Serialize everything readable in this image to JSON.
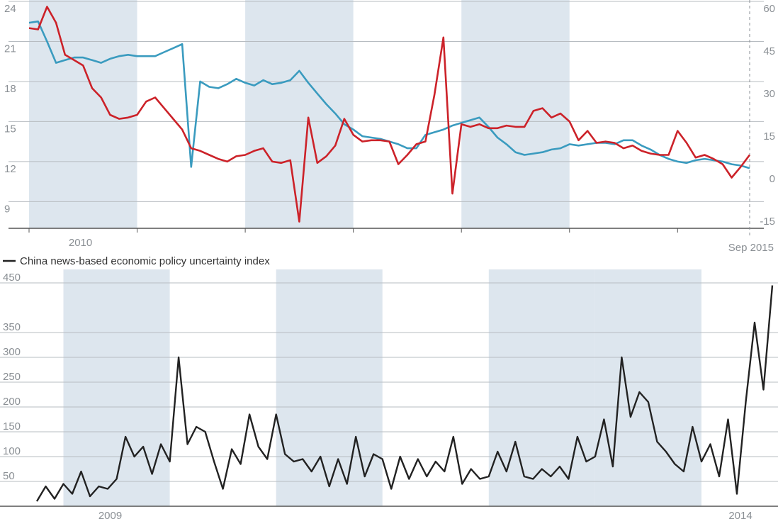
{
  "chart_data": [
    {
      "type": "line",
      "title": "",
      "x_range": [
        "2009-01",
        "2015-09"
      ],
      "x_tick_labels": [
        "2010",
        "Sep 2015"
      ],
      "y_left": {
        "ylim": [
          7,
          24
        ],
        "ticks": [
          9,
          12,
          15,
          18,
          21,
          24
        ]
      },
      "y_right": {
        "ylim": [
          -20,
          60
        ],
        "ticks": [
          -15,
          0,
          15,
          30,
          45,
          60
        ]
      },
      "grid": true,
      "shading_bands": [
        [
          "2009-01",
          "2010-01"
        ],
        [
          "2011-01",
          "2012-01"
        ],
        [
          "2013-01",
          "2014-01"
        ]
      ],
      "series": [
        {
          "axis": "left",
          "color": "#3a9bbf",
          "values": [
            [
              "2009-01",
              22.4
            ],
            [
              "2009-02",
              22.5
            ],
            [
              "2009-03",
              21.0
            ],
            [
              "2009-04",
              19.4
            ],
            [
              "2009-05",
              19.6
            ],
            [
              "2009-06",
              19.8
            ],
            [
              "2009-07",
              19.8
            ],
            [
              "2009-08",
              19.6
            ],
            [
              "2009-09",
              19.4
            ],
            [
              "2009-10",
              19.7
            ],
            [
              "2009-11",
              19.9
            ],
            [
              "2009-12",
              20.0
            ],
            [
              "2010-01",
              19.9
            ],
            [
              "2010-02",
              19.9
            ],
            [
              "2010-03",
              19.9
            ],
            [
              "2010-04",
              20.2
            ],
            [
              "2010-05",
              20.5
            ],
            [
              "2010-06",
              20.8
            ],
            [
              "2010-07",
              11.6
            ],
            [
              "2010-08",
              18.0
            ],
            [
              "2010-09",
              17.6
            ],
            [
              "2010-10",
              17.5
            ],
            [
              "2010-11",
              17.8
            ],
            [
              "2010-12",
              18.2
            ],
            [
              "2011-01",
              17.9
            ],
            [
              "2011-02",
              17.7
            ],
            [
              "2011-03",
              18.1
            ],
            [
              "2011-04",
              17.8
            ],
            [
              "2011-05",
              17.9
            ],
            [
              "2011-06",
              18.1
            ],
            [
              "2011-07",
              18.8
            ],
            [
              "2011-08",
              17.9
            ],
            [
              "2011-09",
              17.1
            ],
            [
              "2011-10",
              16.3
            ],
            [
              "2011-11",
              15.6
            ],
            [
              "2011-12",
              14.8
            ],
            [
              "2012-01",
              14.4
            ],
            [
              "2012-02",
              13.9
            ],
            [
              "2012-03",
              13.8
            ],
            [
              "2012-04",
              13.7
            ],
            [
              "2012-05",
              13.5
            ],
            [
              "2012-06",
              13.3
            ],
            [
              "2012-07",
              13.0
            ],
            [
              "2012-08",
              13.0
            ],
            [
              "2012-09",
              14.0
            ],
            [
              "2012-10",
              14.2
            ],
            [
              "2012-11",
              14.4
            ],
            [
              "2012-12",
              14.7
            ],
            [
              "2013-01",
              14.9
            ],
            [
              "2013-02",
              15.1
            ],
            [
              "2013-03",
              15.3
            ],
            [
              "2013-04",
              14.6
            ],
            [
              "2013-05",
              13.8
            ],
            [
              "2013-06",
              13.3
            ],
            [
              "2013-07",
              12.7
            ],
            [
              "2013-08",
              12.5
            ],
            [
              "2013-09",
              12.6
            ],
            [
              "2013-10",
              12.7
            ],
            [
              "2013-11",
              12.9
            ],
            [
              "2013-12",
              13.0
            ],
            [
              "2014-01",
              13.3
            ],
            [
              "2014-02",
              13.2
            ],
            [
              "2014-03",
              13.3
            ],
            [
              "2014-04",
              13.4
            ],
            [
              "2014-05",
              13.4
            ],
            [
              "2014-06",
              13.3
            ],
            [
              "2014-07",
              13.6
            ],
            [
              "2014-08",
              13.6
            ],
            [
              "2014-09",
              13.2
            ],
            [
              "2014-10",
              12.9
            ],
            [
              "2014-11",
              12.5
            ],
            [
              "2014-12",
              12.2
            ],
            [
              "2015-01",
              12.0
            ],
            [
              "2015-02",
              11.9
            ],
            [
              "2015-03",
              12.1
            ],
            [
              "2015-04",
              12.2
            ],
            [
              "2015-05",
              12.1
            ],
            [
              "2015-06",
              12.0
            ],
            [
              "2015-07",
              11.8
            ],
            [
              "2015-08",
              11.7
            ],
            [
              "2015-09",
              11.5
            ]
          ]
        },
        {
          "axis": "left",
          "color": "#cc2229",
          "values": [
            [
              "2009-01",
              22.0
            ],
            [
              "2009-02",
              21.9
            ],
            [
              "2009-03",
              23.6
            ],
            [
              "2009-04",
              22.4
            ],
            [
              "2009-05",
              20.0
            ],
            [
              "2009-06",
              19.6
            ],
            [
              "2009-07",
              19.2
            ],
            [
              "2009-08",
              17.5
            ],
            [
              "2009-09",
              16.8
            ],
            [
              "2009-10",
              15.5
            ],
            [
              "2009-11",
              15.2
            ],
            [
              "2009-12",
              15.3
            ],
            [
              "2010-01",
              15.5
            ],
            [
              "2010-02",
              16.5
            ],
            [
              "2010-03",
              16.8
            ],
            [
              "2010-04",
              16.0
            ],
            [
              "2010-05",
              15.2
            ],
            [
              "2010-06",
              14.4
            ],
            [
              "2010-07",
              13.0
            ],
            [
              "2010-08",
              12.8
            ],
            [
              "2010-09",
              12.5
            ],
            [
              "2010-10",
              12.2
            ],
            [
              "2010-11",
              12.0
            ],
            [
              "2010-12",
              12.4
            ],
            [
              "2011-01",
              12.5
            ],
            [
              "2011-02",
              12.8
            ],
            [
              "2011-03",
              13.0
            ],
            [
              "2011-04",
              12.0
            ],
            [
              "2011-05",
              11.9
            ],
            [
              "2011-06",
              12.1
            ],
            [
              "2011-07",
              7.5
            ],
            [
              "2011-08",
              15.3
            ],
            [
              "2011-09",
              11.9
            ],
            [
              "2011-10",
              12.4
            ],
            [
              "2011-11",
              13.2
            ],
            [
              "2011-12",
              15.2
            ],
            [
              "2012-01",
              14.0
            ],
            [
              "2012-02",
              13.5
            ],
            [
              "2012-03",
              13.6
            ],
            [
              "2012-04",
              13.6
            ],
            [
              "2012-05",
              13.5
            ],
            [
              "2012-06",
              11.8
            ],
            [
              "2012-07",
              12.5
            ],
            [
              "2012-08",
              13.3
            ],
            [
              "2012-09",
              13.5
            ],
            [
              "2012-10",
              17.0
            ],
            [
              "2012-11",
              21.3
            ],
            [
              "2012-12",
              9.6
            ],
            [
              "2013-01",
              14.8
            ],
            [
              "2013-02",
              14.6
            ],
            [
              "2013-03",
              14.8
            ],
            [
              "2013-04",
              14.5
            ],
            [
              "2013-05",
              14.5
            ],
            [
              "2013-06",
              14.7
            ],
            [
              "2013-07",
              14.6
            ],
            [
              "2013-08",
              14.6
            ],
            [
              "2013-09",
              15.8
            ],
            [
              "2013-10",
              16.0
            ],
            [
              "2013-11",
              15.3
            ],
            [
              "2013-12",
              15.6
            ],
            [
              "2014-01",
              15.0
            ],
            [
              "2014-02",
              13.6
            ],
            [
              "2014-03",
              14.3
            ],
            [
              "2014-04",
              13.4
            ],
            [
              "2014-05",
              13.5
            ],
            [
              "2014-06",
              13.4
            ],
            [
              "2014-07",
              13.0
            ],
            [
              "2014-08",
              13.2
            ],
            [
              "2014-09",
              12.8
            ],
            [
              "2014-10",
              12.6
            ],
            [
              "2014-11",
              12.5
            ],
            [
              "2014-12",
              12.5
            ],
            [
              "2015-01",
              14.3
            ],
            [
              "2015-02",
              13.4
            ],
            [
              "2015-03",
              12.3
            ],
            [
              "2015-04",
              12.5
            ],
            [
              "2015-05",
              12.2
            ],
            [
              "2015-06",
              11.8
            ],
            [
              "2015-07",
              10.8
            ],
            [
              "2015-08",
              11.6
            ],
            [
              "2015-09",
              12.5
            ]
          ]
        }
      ]
    },
    {
      "type": "line",
      "title": "",
      "x_range": [
        "2008-10",
        "2015-09"
      ],
      "x_tick_labels": [
        "2009",
        "2014"
      ],
      "ylim": [
        0,
        470
      ],
      "y_ticks": [
        50,
        100,
        150,
        200,
        250,
        300,
        350,
        450
      ],
      "grid": true,
      "shading_bands": [
        [
          "2009-01",
          "2010-01"
        ],
        [
          "2011-01",
          "2012-01"
        ],
        [
          "2013-01",
          "2014-01"
        ],
        [
          "2014-01",
          "2015-01"
        ]
      ],
      "series": [
        {
          "name": "China news-based economic policy uncertainty index",
          "color": "#222222",
          "values": [
            [
              "2008-10",
              10
            ],
            [
              "2008-11",
              40
            ],
            [
              "2008-12",
              15
            ],
            [
              "2009-01",
              45
            ],
            [
              "2009-02",
              25
            ],
            [
              "2009-03",
              70
            ],
            [
              "2009-04",
              20
            ],
            [
              "2009-05",
              40
            ],
            [
              "2009-06",
              35
            ],
            [
              "2009-07",
              55
            ],
            [
              "2009-08",
              140
            ],
            [
              "2009-09",
              100
            ],
            [
              "2009-10",
              120
            ],
            [
              "2009-11",
              65
            ],
            [
              "2009-12",
              125
            ],
            [
              "2010-01",
              90
            ],
            [
              "2010-02",
              300
            ],
            [
              "2010-03",
              125
            ],
            [
              "2010-04",
              160
            ],
            [
              "2010-05",
              150
            ],
            [
              "2010-06",
              90
            ],
            [
              "2010-07",
              35
            ],
            [
              "2010-08",
              115
            ],
            [
              "2010-09",
              85
            ],
            [
              "2010-10",
              185
            ],
            [
              "2010-11",
              120
            ],
            [
              "2010-12",
              95
            ],
            [
              "2011-01",
              185
            ],
            [
              "2011-02",
              105
            ],
            [
              "2011-03",
              90
            ],
            [
              "2011-04",
              95
            ],
            [
              "2011-05",
              70
            ],
            [
              "2011-06",
              100
            ],
            [
              "2011-07",
              40
            ],
            [
              "2011-08",
              95
            ],
            [
              "2011-09",
              45
            ],
            [
              "2011-10",
              140
            ],
            [
              "2011-11",
              60
            ],
            [
              "2011-12",
              105
            ],
            [
              "2012-01",
              95
            ],
            [
              "2012-02",
              35
            ],
            [
              "2012-03",
              100
            ],
            [
              "2012-04",
              55
            ],
            [
              "2012-05",
              95
            ],
            [
              "2012-06",
              60
            ],
            [
              "2012-07",
              90
            ],
            [
              "2012-08",
              70
            ],
            [
              "2012-09",
              140
            ],
            [
              "2012-10",
              45
            ],
            [
              "2012-11",
              75
            ],
            [
              "2012-12",
              55
            ],
            [
              "2013-01",
              60
            ],
            [
              "2013-02",
              110
            ],
            [
              "2013-03",
              70
            ],
            [
              "2013-04",
              130
            ],
            [
              "2013-05",
              60
            ],
            [
              "2013-06",
              55
            ],
            [
              "2013-07",
              75
            ],
            [
              "2013-08",
              60
            ],
            [
              "2013-09",
              80
            ],
            [
              "2013-10",
              55
            ],
            [
              "2013-11",
              140
            ],
            [
              "2013-12",
              90
            ],
            [
              "2014-01",
              100
            ],
            [
              "2014-02",
              175
            ],
            [
              "2014-03",
              80
            ],
            [
              "2014-04",
              300
            ],
            [
              "2014-05",
              180
            ],
            [
              "2014-06",
              230
            ],
            [
              "2014-07",
              210
            ],
            [
              "2014-08",
              130
            ],
            [
              "2014-09",
              110
            ],
            [
              "2014-10",
              85
            ],
            [
              "2014-11",
              70
            ],
            [
              "2014-12",
              160
            ],
            [
              "2015-01",
              90
            ],
            [
              "2015-02",
              125
            ],
            [
              "2015-03",
              60
            ],
            [
              "2015-04",
              175
            ],
            [
              "2015-05",
              25
            ],
            [
              "2015-06",
              210
            ],
            [
              "2015-07",
              370
            ],
            [
              "2015-08",
              235
            ],
            [
              "2015-09",
              445
            ]
          ]
        }
      ]
    }
  ]
}
